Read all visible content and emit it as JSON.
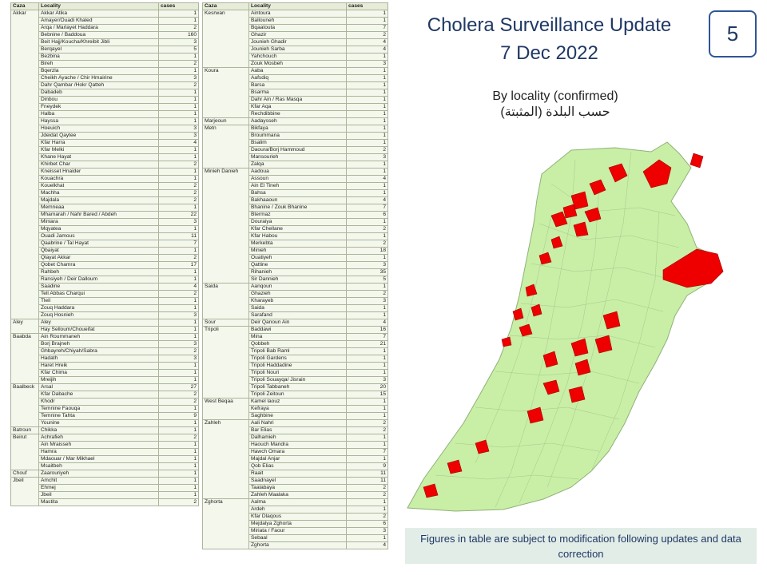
{
  "title_line1": "Cholera Surveillance Update",
  "title_line2": "7 Dec 2022",
  "page_number": "5",
  "subtitle_en": "By locality (confirmed)",
  "subtitle_ar": "حسب البلدة (المثبتة)",
  "note": "Figures in table are subject to modification following updates and data correction",
  "colors": {
    "title": "#1f3864",
    "affected": "#ee0000",
    "unaffected": "#c9eea6",
    "map_border": "#9cbf85",
    "note_bg": "#e2ede8"
  },
  "table_headers": {
    "caza": "Caza",
    "locality": "Locality",
    "cases": "cases"
  },
  "left_table": [
    {
      "caza": "Akkar",
      "rows": [
        [
          "Akkar Atika",
          "1"
        ],
        [
          "Amayer/Ouadi Khaled",
          "1"
        ],
        [
          "Arqa / Marlayet Haddara",
          "2"
        ],
        [
          "Bebnine / Baddoua",
          "160"
        ],
        [
          "Beit Hajj/Koucha/Khreibit Jibli",
          "3"
        ],
        [
          "Berqayel",
          "5"
        ],
        [
          "Bezbina",
          "1"
        ],
        [
          "Bireh",
          "2"
        ],
        [
          "Bqerzla",
          "1"
        ],
        [
          "Cheikh Ayache / Chir Hmairine",
          "3"
        ],
        [
          "Dahr Qambar /Hokr Qatteh",
          "2"
        ],
        [
          "Dabadeb",
          "1"
        ],
        [
          "Dinbou",
          "1"
        ],
        [
          "Fneydek",
          "1"
        ],
        [
          "Halba",
          "1"
        ],
        [
          "Hayssa",
          "1"
        ],
        [
          "Hoeuich",
          "3"
        ],
        [
          "Jdeidat Qaytee",
          "3"
        ],
        [
          "Kfar Harra",
          "4"
        ],
        [
          "Kfar Melki",
          "1"
        ],
        [
          "Khane Hayat",
          "1"
        ],
        [
          "Khirbet Char",
          "2"
        ],
        [
          "Kneisset Hnaider",
          "1"
        ],
        [
          "Kouachra",
          "1"
        ],
        [
          "Kouelkhat",
          "2"
        ],
        [
          "Machha",
          "2"
        ],
        [
          "Majdala",
          "2"
        ],
        [
          "Memneaa",
          "1"
        ],
        [
          "Mhamarah / Nahr Bared / Abdeh",
          "22"
        ],
        [
          "Miniara",
          "3"
        ],
        [
          "Mqyatea",
          "1"
        ],
        [
          "Ouadi Jamous",
          "11"
        ],
        [
          "Qaabrine / Tal Hayat",
          "7"
        ],
        [
          "Qbaiyat",
          "1"
        ],
        [
          "Qlayat Akkar",
          "2"
        ],
        [
          "Qobet Chamra",
          "17"
        ],
        [
          "Rahbeh",
          "1"
        ],
        [
          "Ransiyeh / Deir Dalloum",
          "1"
        ],
        [
          "Saadine",
          "4"
        ],
        [
          "Tell Abbas Charqui",
          "2"
        ],
        [
          "Tleil",
          "1"
        ],
        [
          "Zouq Haddara",
          "1"
        ],
        [
          "Zouq Hosnieh",
          "3"
        ]
      ]
    },
    {
      "caza": "Aley",
      "rows": [
        [
          "Aley",
          "1"
        ],
        [
          "Hay Selloum/Choueifat",
          "1"
        ]
      ]
    },
    {
      "caza": "Baabda",
      "rows": [
        [
          "Ain Roummaneh",
          "1"
        ],
        [
          "Borj Brajneh",
          "3"
        ],
        [
          "Ghbayreh/Chiyah/Sabra",
          "2"
        ],
        [
          "Hadath",
          "3"
        ],
        [
          "Haret Hreik",
          "1"
        ],
        [
          "Kfar Chima",
          "1"
        ],
        [
          "Mreijih",
          "1"
        ]
      ]
    },
    {
      "caza": "Baalbeck",
      "rows": [
        [
          "Arsal",
          "27"
        ],
        [
          "Kfar Dabache",
          "2"
        ],
        [
          "Khodr",
          "2"
        ],
        [
          "Temnine Faouqa",
          "1"
        ],
        [
          "Temnine Tahta",
          "9"
        ],
        [
          "Younine",
          "1"
        ]
      ]
    },
    {
      "caza": "Batroun",
      "rows": [
        [
          "Chikka",
          "1"
        ]
      ]
    },
    {
      "caza": "Beirut",
      "rows": [
        [
          "Achrafieh",
          "2"
        ],
        [
          "Ain Mraisseh",
          "1"
        ],
        [
          "Hamra",
          "1"
        ],
        [
          "Mdaouar / Mar Mikhael",
          "1"
        ],
        [
          "Msaitbeh",
          "1"
        ]
      ]
    },
    {
      "caza": "Chouf",
      "rows": [
        [
          "Zaarouriyeh",
          "1"
        ]
      ]
    },
    {
      "caza": "Jbeil",
      "rows": [
        [
          "Amchit",
          "1"
        ],
        [
          "Ehmej",
          "1"
        ],
        [
          "Jbeil",
          "1"
        ],
        [
          "Mastita",
          "2"
        ]
      ]
    }
  ],
  "right_table": [
    {
      "caza": "Kesrwan",
      "rows": [
        [
          "Aintoura",
          "1"
        ],
        [
          "Ballouneh",
          "1"
        ],
        [
          "Bqaatouta",
          "7"
        ],
        [
          "Ghazir",
          "2"
        ],
        [
          "Jounieh Ghadir",
          "4"
        ],
        [
          "Jounieh Sarba",
          "4"
        ],
        [
          "Yahchouch",
          "1"
        ],
        [
          "Zouk Mosbeh",
          "3"
        ]
      ]
    },
    {
      "caza": "Koura",
      "rows": [
        [
          "Aaba",
          "1"
        ],
        [
          "Aafsdiq",
          "1"
        ],
        [
          "Barsa",
          "1"
        ],
        [
          "Bsarma",
          "1"
        ],
        [
          "Dahr Ain / Ras Masqa",
          "1"
        ],
        [
          "Kfar Aqa",
          "1"
        ],
        [
          "Rechdibbine",
          "1"
        ]
      ]
    },
    {
      "caza": "Marjeoun",
      "rows": [
        [
          "Aadaysseh",
          "1"
        ]
      ]
    },
    {
      "caza": "Metn",
      "rows": [
        [
          "Bikfaya",
          "1"
        ],
        [
          "Broummana",
          "1"
        ],
        [
          "Bsalim",
          "1"
        ],
        [
          "Daoura/Borj Hammoud",
          "2"
        ],
        [
          "Mansourieh",
          "3"
        ],
        [
          "Zalqa",
          "1"
        ]
      ]
    },
    {
      "caza": "Minieh Danieh",
      "rows": [
        [
          "Aadoua",
          "1"
        ],
        [
          "Assoun",
          "4"
        ],
        [
          "Ain El Tineh",
          "1"
        ],
        [
          "Bahsa",
          "1"
        ],
        [
          "Bakhaaoun",
          "4"
        ],
        [
          "Bhanine / Zouk Bhanine",
          "7"
        ],
        [
          "Btermaz",
          "6"
        ],
        [
          "Douraiya",
          "1"
        ],
        [
          "Kfar Chellane",
          "2"
        ],
        [
          "Kfar Habou",
          "1"
        ],
        [
          "Merkebta",
          "2"
        ],
        [
          "Minieh",
          "18"
        ],
        [
          "Ouatiyeh",
          "1"
        ],
        [
          "Qattine",
          "3"
        ],
        [
          "Rihanieh",
          "35"
        ],
        [
          "Sir Dannieh",
          "5"
        ]
      ]
    },
    {
      "caza": "Saida",
      "rows": [
        [
          "Aanqoun",
          "1"
        ],
        [
          "Ghazieh",
          "2"
        ],
        [
          "Kharayeb",
          "3"
        ],
        [
          "Saida",
          "1"
        ],
        [
          "Sarafand",
          "1"
        ]
      ]
    },
    {
      "caza": "Sour",
      "rows": [
        [
          "Deir Qanoun Ain",
          "4"
        ]
      ]
    },
    {
      "caza": "Tripoli",
      "rows": [
        [
          "Baddawi",
          "16"
        ],
        [
          "Mina",
          "7"
        ],
        [
          "Qobbeh",
          "21"
        ],
        [
          "Tripoli Bab Raml",
          "1"
        ],
        [
          "Tripoli Gardens",
          "1"
        ],
        [
          "Tripoli Haddadine",
          "1"
        ],
        [
          "Tripoli Nouri",
          "1"
        ],
        [
          "Tripoli Souayqa/ Jisrain",
          "3"
        ],
        [
          "Tripoli Tabbaneh",
          "20"
        ],
        [
          "Tripoli Zeitoun",
          "15"
        ]
      ]
    },
    {
      "caza": "West Beqaa",
      "rows": [
        [
          "Kamel laouz",
          "1"
        ],
        [
          "Kefraya",
          "1"
        ],
        [
          "Saghbine",
          "1"
        ]
      ]
    },
    {
      "caza": "Zahleh",
      "rows": [
        [
          "Aali Nahri",
          "2"
        ],
        [
          "Bar Elias",
          "2"
        ],
        [
          "Dalhamieh",
          "1"
        ],
        [
          "Haouch Mandra",
          "1"
        ],
        [
          "Hawch Omara",
          "7"
        ],
        [
          "Majdal Anjar",
          "1"
        ],
        [
          "Qob Elias",
          "9"
        ],
        [
          "Raait",
          "11"
        ],
        [
          "Saadnayel",
          "11"
        ],
        [
          "Taalabaya",
          "2"
        ],
        [
          "Zahleh Maalaka",
          "2"
        ]
      ]
    },
    {
      "caza": "Zghorta",
      "rows": [
        [
          "Aalma",
          "1"
        ],
        [
          "Ardeh",
          "1"
        ],
        [
          "Kfar Dlaqous",
          "2"
        ],
        [
          "Mejdalya Zghorta",
          "6"
        ],
        [
          "Miriata / Faour",
          "3"
        ],
        [
          "Sebaal",
          "1"
        ],
        [
          "Zghorta",
          "4"
        ]
      ]
    }
  ]
}
